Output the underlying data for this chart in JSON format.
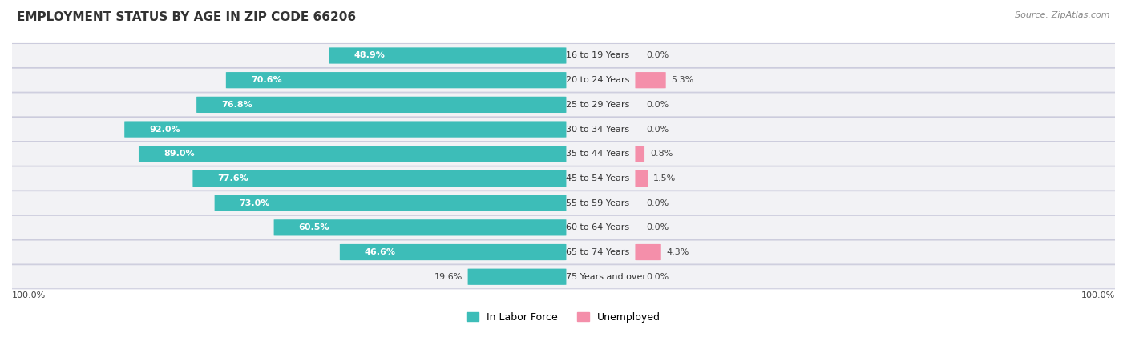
{
  "title": "EMPLOYMENT STATUS BY AGE IN ZIP CODE 66206",
  "source": "Source: ZipAtlas.com",
  "categories": [
    "16 to 19 Years",
    "20 to 24 Years",
    "25 to 29 Years",
    "30 to 34 Years",
    "35 to 44 Years",
    "45 to 54 Years",
    "55 to 59 Years",
    "60 to 64 Years",
    "65 to 74 Years",
    "75 Years and over"
  ],
  "in_labor_force": [
    48.9,
    70.6,
    76.8,
    92.0,
    89.0,
    77.6,
    73.0,
    60.5,
    46.6,
    19.6
  ],
  "unemployed": [
    0.0,
    5.3,
    0.0,
    0.0,
    0.8,
    1.5,
    0.0,
    0.0,
    4.3,
    0.0
  ],
  "labor_color": "#3DBDB8",
  "unemployed_color": "#F48FAA",
  "row_bg_color": "#F2F2F5",
  "row_border_color": "#CCCCDD",
  "max_value": 100.0,
  "legend_labor": "In Labor Force",
  "legend_unemployed": "Unemployed",
  "title_fontsize": 11,
  "source_fontsize": 8,
  "label_fontsize": 8,
  "category_fontsize": 8,
  "axis_label": "100.0%"
}
